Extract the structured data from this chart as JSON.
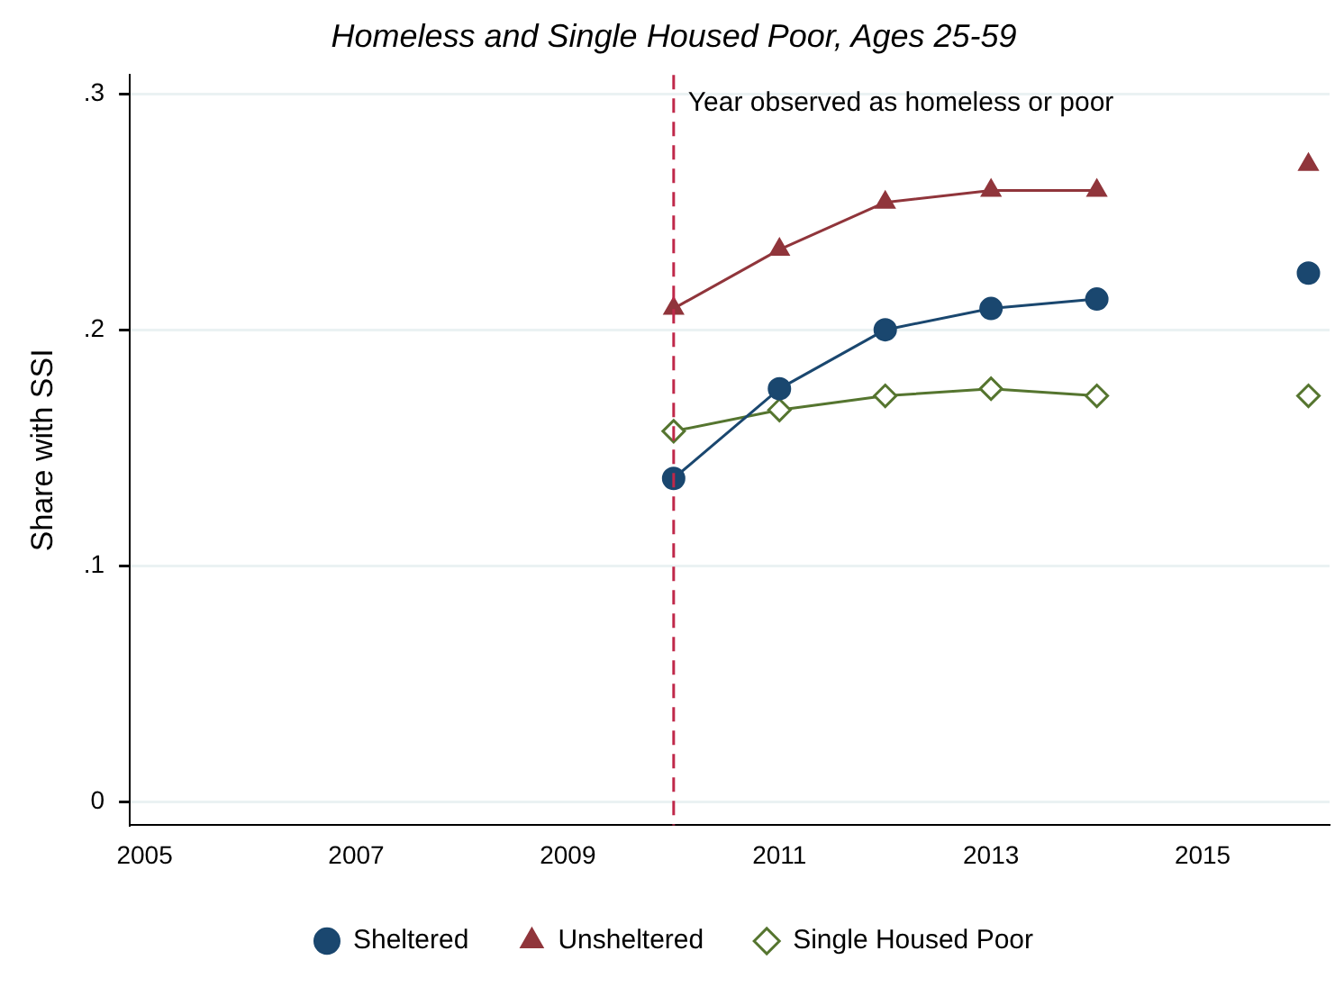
{
  "chart_data": {
    "type": "line",
    "title": "Homeless and Single Housed Poor, Ages 25-59",
    "ylabel": "Share with SSI",
    "x": [
      2010,
      2011,
      2012,
      2013,
      2014,
      2015,
      2016
    ],
    "series": [
      {
        "name": "Sheltered",
        "color": "#1a476f",
        "marker": "circle",
        "values": [
          0.137,
          0.175,
          0.2,
          0.209,
          0.213,
          null,
          0.224
        ]
      },
      {
        "name": "Unsheltered",
        "color": "#90353b",
        "marker": "triangle",
        "values": [
          0.209,
          0.234,
          0.254,
          0.259,
          0.259,
          null,
          0.27
        ]
      },
      {
        "name": "Single Housed Poor",
        "color": "#55752f",
        "marker": "diamond",
        "values": [
          0.157,
          0.166,
          0.172,
          0.175,
          0.172,
          null,
          0.172
        ]
      }
    ],
    "xlim": [
      2004.86,
      2016.2
    ],
    "xticks": [
      2005,
      2007,
      2009,
      2011,
      2013,
      2015
    ],
    "ylim": [
      -0.01,
      0.308
    ],
    "yticks": [
      {
        "value": 0,
        "label": "0"
      },
      {
        "value": 0.1,
        "label": ".1"
      },
      {
        "value": 0.2,
        "label": ".2"
      },
      {
        "value": 0.3,
        "label": ".3"
      }
    ],
    "grid": "y",
    "legend": "bottom",
    "line_style": "solid",
    "ref_lines": [
      {
        "axis": "x",
        "value": 2010,
        "label": "Year observed as homeless or poor",
        "color": "#c0284a",
        "line_style": "dashed"
      }
    ]
  }
}
